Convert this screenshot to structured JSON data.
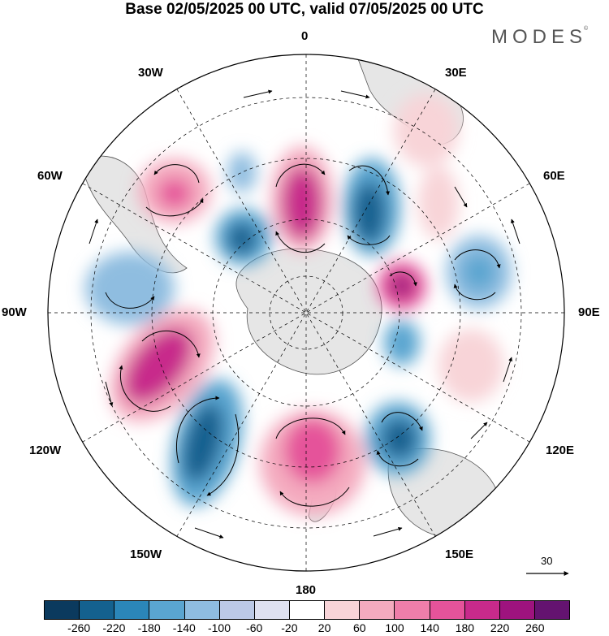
{
  "title": "Base 02/05/2025 00 UTC, valid 07/05/2025 00 UTC",
  "brand": "MODES",
  "brand_mark": "©",
  "lon_labels": {
    "top": "0",
    "bottom": "180",
    "left": "90W",
    "right": "90E",
    "tl1": "30W",
    "tl2": "60W",
    "tr1": "30E",
    "tr2": "60E",
    "bl1": "120W",
    "bl2": "150W",
    "br1": "120E",
    "br2": "150E"
  },
  "reference_vector": "30",
  "colorbar": {
    "colors": [
      "#0b3a5e",
      "#14618f",
      "#2b86b9",
      "#5aa5d0",
      "#8fbde0",
      "#bcc9e6",
      "#dfe1f0",
      "#ffffff",
      "#f8d4d8",
      "#f4abbf",
      "#ef7eaa",
      "#e5539a",
      "#c82a8b",
      "#9e137e",
      "#641370"
    ],
    "ticks": [
      "-260",
      "-220",
      "-180",
      "-140",
      "-100",
      "-60",
      "-20",
      "20",
      "60",
      "100",
      "140",
      "180",
      "220",
      "260"
    ]
  }
}
